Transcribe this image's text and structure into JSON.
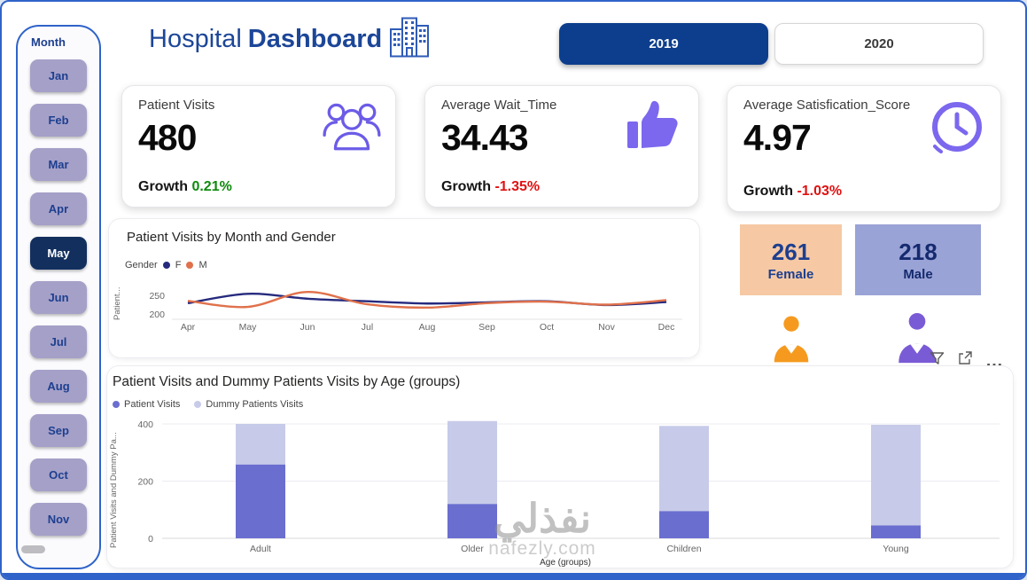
{
  "sidebar": {
    "title": "Month",
    "months": [
      "Jan",
      "Feb",
      "Mar",
      "Apr",
      "May",
      "Jun",
      "Jul",
      "Aug",
      "Sep",
      "Oct",
      "Nov"
    ],
    "selected": "May"
  },
  "header": {
    "title_regular": "Hospital",
    "title_bold": "Dashboard",
    "years": [
      {
        "label": "2019",
        "selected": true
      },
      {
        "label": "2020",
        "selected": false
      }
    ]
  },
  "kpis": [
    {
      "title": "Patient Visits",
      "value": "480",
      "growth_label": "Growth",
      "growth_value": "0.21%",
      "growth_color": "#0e8a0e",
      "icon": "patients-group-icon"
    },
    {
      "title": "Average Wait_Time",
      "value": "34.43",
      "growth_label": "Growth",
      "growth_value": "-1.35%",
      "growth_color": "#e01111",
      "icon": "thumbs-up-icon"
    },
    {
      "title": "Average Satisfication_Score",
      "value": "4.97",
      "growth_label": "Growth",
      "growth_value": "-1.03%",
      "growth_color": "#e01111",
      "icon": "clock-icon"
    }
  ],
  "gender_cards": [
    {
      "value": "261",
      "label": "Female",
      "bg": "#f6c9a4",
      "text_color": "#1d3f8f"
    },
    {
      "value": "218",
      "label": "Male",
      "bg": "#9aa3d6",
      "text_color": "#152a6e"
    }
  ],
  "visual_header": {
    "more_label": "…"
  },
  "watermark": {
    "arabic": "نفذلي",
    "site": "nafezly.com"
  },
  "chart_data": [
    {
      "type": "line",
      "title": "Patient Visits by Month and Gender",
      "legend_title": "Gender",
      "ylabel": "Patient...",
      "x": [
        "Apr",
        "May",
        "Jun",
        "Jul",
        "Aug",
        "Sep",
        "Oct",
        "Nov",
        "Dec"
      ],
      "series": [
        {
          "name": "F",
          "color": "#252a7e",
          "values": [
            229,
            254,
            241,
            234,
            228,
            231,
            234,
            224,
            232
          ]
        },
        {
          "name": "M",
          "color": "#e0714b",
          "values": [
            235,
            219,
            259,
            226,
            217,
            229,
            233,
            225,
            237
          ]
        }
      ],
      "ylim": [
        195,
        270
      ],
      "yticks": [
        200,
        250
      ],
      "legend_position": "top-left",
      "grid": false
    },
    {
      "type": "bar",
      "stacked": true,
      "title": "Patient Visits and Dummy Patients Visits by Age (groups)",
      "categories": [
        "Adult",
        "Older",
        "Children",
        "Young"
      ],
      "series": [
        {
          "name": "Patient Visits",
          "color": "#6a6ecf",
          "values": [
            258,
            120,
            95,
            45
          ]
        },
        {
          "name": "Dummy Patients Visits",
          "color": "#c7cbe9",
          "values": [
            142,
            290,
            298,
            352
          ]
        }
      ],
      "ylim": [
        0,
        420
      ],
      "yticks": [
        0,
        200,
        400
      ],
      "ylabel": "Patient Visits and Dummy Pa...",
      "xlabel": "Age (groups)",
      "legend_position": "top-left",
      "grid": true
    }
  ]
}
